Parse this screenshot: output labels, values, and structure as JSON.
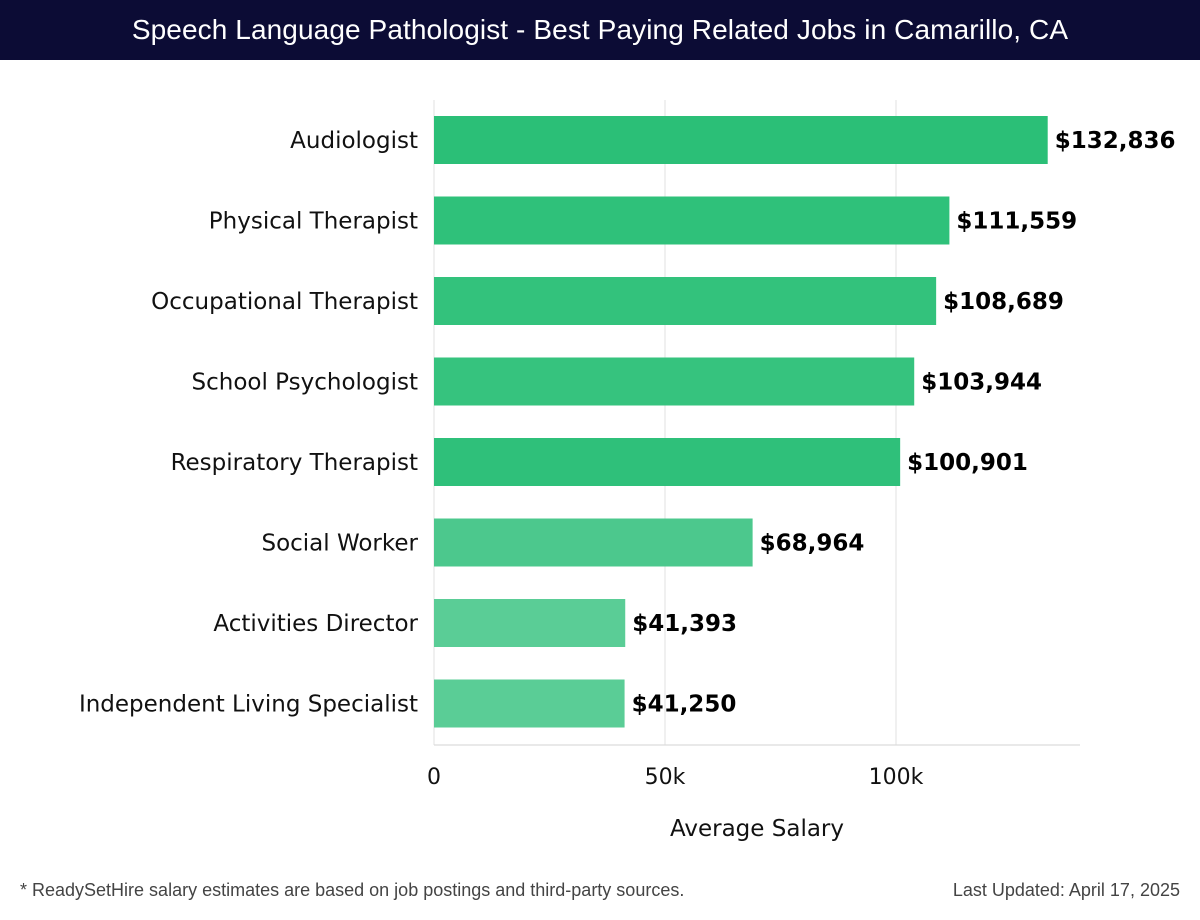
{
  "header": {
    "title": "Speech Language Pathologist - Best Paying Related Jobs in Camarillo, CA"
  },
  "chart_data": {
    "type": "bar",
    "orientation": "horizontal",
    "title": "Speech Language Pathologist - Best Paying Related Jobs in Camarillo, CA",
    "xlabel": "Average Salary",
    "ylabel": "",
    "xlim": [
      0,
      140000
    ],
    "grid": true,
    "x_ticks": [
      {
        "value": 0,
        "label": "0"
      },
      {
        "value": 50000,
        "label": "50k"
      },
      {
        "value": 100000,
        "label": "100k"
      }
    ],
    "categories": [
      "Audiologist",
      "Physical Therapist",
      "Occupational Therapist",
      "School Psychologist",
      "Respiratory Therapist",
      "Social Worker",
      "Activities Director",
      "Independent Living Specialist"
    ],
    "values": [
      132836,
      111559,
      108689,
      103944,
      100901,
      68964,
      41393,
      41250
    ],
    "value_labels": [
      "$132,836",
      "$111,559",
      "$108,689",
      "$103,944",
      "$100,901",
      "$68,964",
      "$41,393",
      "$41,250"
    ],
    "colors": [
      "#2bbf77",
      "#2fc17a",
      "#33c27c",
      "#36c37e",
      "#2fc07a",
      "#4cc88d",
      "#5acd96",
      "#5acd96"
    ]
  },
  "footer": {
    "note": "* ReadySetHire salary estimates are based on job postings and third-party sources.",
    "updated": "Last Updated: April 17, 2025"
  }
}
